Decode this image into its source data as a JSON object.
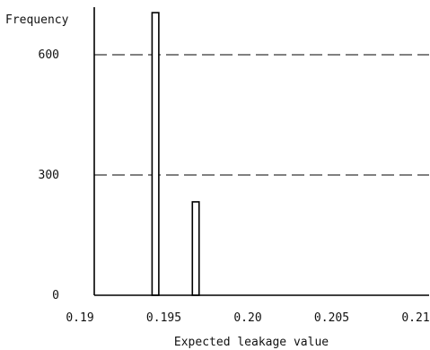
{
  "chart_data": {
    "type": "bar",
    "title": "",
    "xlabel": "Expected leakage value",
    "ylabel": "Frequency",
    "xlim": [
      0.19,
      0.21
    ],
    "ylim": [
      0,
      600
    ],
    "x_ticks": [
      "0.19",
      "0.195",
      "0.20",
      "0.205",
      "0.21"
    ],
    "x_tick_values": [
      0.19,
      0.195,
      0.2,
      0.205,
      0.21
    ],
    "y_ticks": [
      "0",
      "300",
      "600"
    ],
    "y_tick_values": [
      0,
      300,
      600
    ],
    "gridlines": {
      "horizontal_dashed_at": [
        300,
        600
      ]
    },
    "bars": [
      {
        "x_start": 0.1943,
        "x_end": 0.1947,
        "value": 705
      },
      {
        "x_start": 0.1967,
        "x_end": 0.1971,
        "value": 233
      }
    ]
  }
}
